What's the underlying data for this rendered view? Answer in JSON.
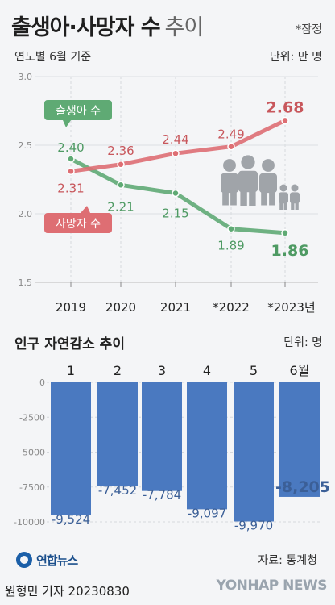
{
  "header": {
    "title": "출생아·사망자 수",
    "title_suffix": "추이",
    "note": "*잠정"
  },
  "chart1": {
    "subtitle": "연도별 6월 기준",
    "unit": "단위: 만 명"
  },
  "chart2": {
    "title": "인구 자연감소 추이",
    "unit": "단위: 명"
  },
  "footer": {
    "source": "자료: 통계청",
    "logo_text": "연합뉴스",
    "byline": "원형민 기자  20230830",
    "watermark": "YONHAP NEWS"
  },
  "icons": {
    "family": "family-people-icon",
    "logo": "yonhap-logo-icon"
  },
  "colors": {
    "births": "#5faa74",
    "births_label": "#4e9a63",
    "deaths": "#de6e73",
    "deaths_label": "#c8575c",
    "bars": "#4a79c0",
    "bar_labels": "#3b5f97",
    "family_icon": "#a0a4a9"
  },
  "chart_data": [
    {
      "type": "line",
      "categories": [
        "2019",
        "2020",
        "2021",
        "*2022",
        "*2023년"
      ],
      "ylim": [
        1.5,
        3.0
      ],
      "yticks": [
        "1.5",
        "2.0",
        "2.5",
        "3.0"
      ],
      "grid": true,
      "series": [
        {
          "name": "출생아 수",
          "values": [
            2.4,
            2.21,
            2.15,
            1.89,
            1.86
          ],
          "labels": [
            "2.40",
            "2.21",
            "2.15",
            "1.89",
            "1.86"
          ]
        },
        {
          "name": "사망자 수",
          "values": [
            2.31,
            2.36,
            2.44,
            2.49,
            2.68
          ],
          "labels": [
            "2.31",
            "2.36",
            "2.44",
            "2.49",
            "2.68"
          ]
        }
      ]
    },
    {
      "type": "bar",
      "categories": [
        "1",
        "2",
        "3",
        "4",
        "5",
        "6월"
      ],
      "values": [
        -9524,
        -7452,
        -7784,
        -9097,
        -9970,
        -8205
      ],
      "labels": [
        "-9,524",
        "-7,452",
        "-7,784",
        "-9,097",
        "-9,970",
        "-8,205"
      ],
      "ylim": [
        -10000,
        0
      ],
      "yticks": [
        "0",
        "-2500",
        "-5000",
        "-7500",
        "-10000"
      ],
      "grid": true
    }
  ]
}
